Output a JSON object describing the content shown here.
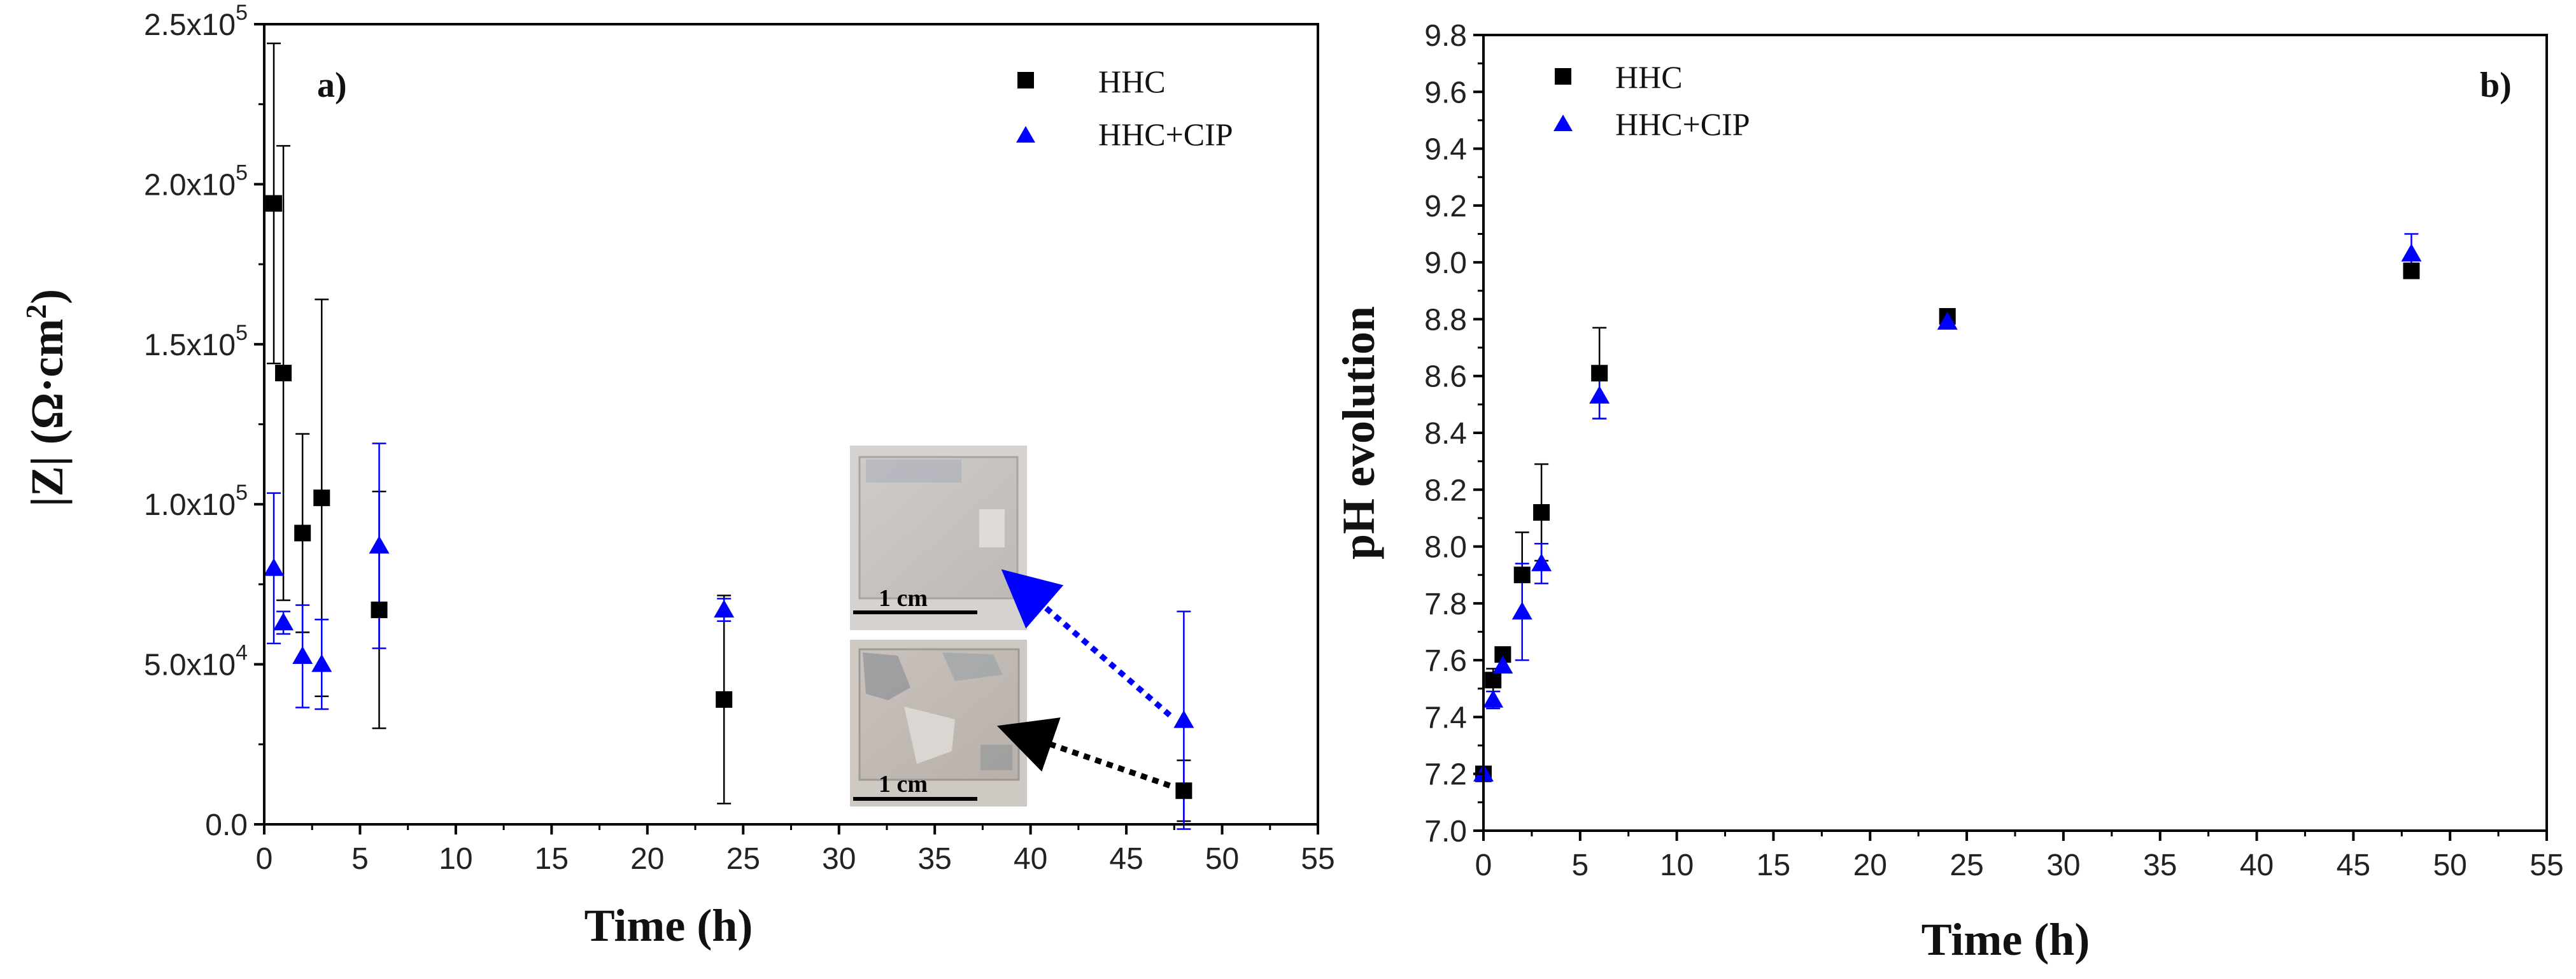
{
  "chart_data": [
    {
      "type": "scatter",
      "panel_label": "a)",
      "xlabel": "Time (h)",
      "ylabel_main": "|Z| (Ω·cm",
      "ylabel_sup": "2",
      "ylabel_tail": ")",
      "xlim": [
        0,
        55
      ],
      "ylim": [
        0,
        250000
      ],
      "xticks": [
        0,
        5,
        10,
        15,
        20,
        25,
        30,
        35,
        40,
        45,
        50,
        55
      ],
      "yticks": [
        {
          "value": 0,
          "mantissa": "0.0",
          "exp": ""
        },
        {
          "value": 50000,
          "mantissa": "5.0x10",
          "exp": "4"
        },
        {
          "value": 100000,
          "mantissa": "1.0x10",
          "exp": "5"
        },
        {
          "value": 150000,
          "mantissa": "1.5x10",
          "exp": "5"
        },
        {
          "value": 200000,
          "mantissa": "2.0x10",
          "exp": "5"
        },
        {
          "value": 250000,
          "mantissa": "2.5x10",
          "exp": "5"
        }
      ],
      "legend_position": "top-right",
      "series": [
        {
          "name": "HHC",
          "marker": "square",
          "color": "#000000",
          "points": [
            {
              "x": 0.5,
              "y": 194000,
              "err": 50000
            },
            {
              "x": 1,
              "y": 141000,
              "err": 71000
            },
            {
              "x": 2,
              "y": 91000,
              "err": 31000
            },
            {
              "x": 3,
              "y": 102000,
              "err": 62000
            },
            {
              "x": 6,
              "y": 67000,
              "err": 37000
            },
            {
              "x": 24,
              "y": 39000,
              "err": 32500
            },
            {
              "x": 48,
              "y": 10500,
              "err": 9500
            }
          ]
        },
        {
          "name": "HHC+CIP",
          "marker": "triangle",
          "color": "#0000ff",
          "points": [
            {
              "x": 0.5,
              "y": 80000,
              "err": 23500
            },
            {
              "x": 1,
              "y": 63000,
              "err": 3500
            },
            {
              "x": 2,
              "y": 52500,
              "err": 16000
            },
            {
              "x": 3,
              "y": 50000,
              "err": 14000
            },
            {
              "x": 6,
              "y": 87000,
              "err": 32000
            },
            {
              "x": 24,
              "y": 67000,
              "err": 3500
            },
            {
              "x": 48,
              "y": 32500,
              "err": 34000
            }
          ]
        }
      ],
      "inset": {
        "top_scale_label": "1 cm",
        "bottom_scale_label": "1 cm",
        "arrows": [
          {
            "series": "HHC+CIP",
            "color": "#0000ff",
            "target_x": 48,
            "target_y": 32500,
            "points_to": "top-photo"
          },
          {
            "series": "HHC",
            "color": "#000000",
            "target_x": 48,
            "target_y": 10500,
            "points_to": "bottom-photo"
          }
        ]
      }
    },
    {
      "type": "scatter",
      "panel_label": "b)",
      "xlabel": "Time (h)",
      "ylabel": "pH evolution",
      "xlim": [
        0,
        55
      ],
      "ylim": [
        7.0,
        9.8
      ],
      "xticks": [
        0,
        5,
        10,
        15,
        20,
        25,
        30,
        35,
        40,
        45,
        50,
        55
      ],
      "yticks": [
        "7.0",
        "7.2",
        "7.4",
        "7.6",
        "7.8",
        "8.0",
        "8.2",
        "8.4",
        "8.6",
        "8.8",
        "9.0",
        "9.2",
        "9.4",
        "9.6",
        "9.8"
      ],
      "legend_position": "top-left",
      "series": [
        {
          "name": "HHC",
          "marker": "square",
          "color": "#000000",
          "points": [
            {
              "x": 0,
              "y": 7.2,
              "err": 0
            },
            {
              "x": 0.5,
              "y": 7.53,
              "err": 0.04
            },
            {
              "x": 1,
              "y": 7.62,
              "err": 0.02
            },
            {
              "x": 2,
              "y": 7.9,
              "err": 0.15
            },
            {
              "x": 3,
              "y": 8.12,
              "err": 0.17
            },
            {
              "x": 6,
              "y": 8.61,
              "err": 0.16
            },
            {
              "x": 24,
              "y": 8.81,
              "err": 0.02
            },
            {
              "x": 48,
              "y": 8.97,
              "err": 0.01
            }
          ]
        },
        {
          "name": "HHC+CIP",
          "marker": "triangle",
          "color": "#0000ff",
          "points": [
            {
              "x": 0,
              "y": 7.2,
              "err": 0
            },
            {
              "x": 0.5,
              "y": 7.46,
              "err": 0.03
            },
            {
              "x": 1,
              "y": 7.58,
              "err": 0.02
            },
            {
              "x": 2,
              "y": 7.77,
              "err": 0.17
            },
            {
              "x": 3,
              "y": 7.94,
              "err": 0.07
            },
            {
              "x": 6,
              "y": 8.53,
              "err": 0.08
            },
            {
              "x": 24,
              "y": 8.79,
              "err": 0.01
            },
            {
              "x": 48,
              "y": 9.03,
              "err": 0.07
            }
          ]
        }
      ]
    }
  ]
}
